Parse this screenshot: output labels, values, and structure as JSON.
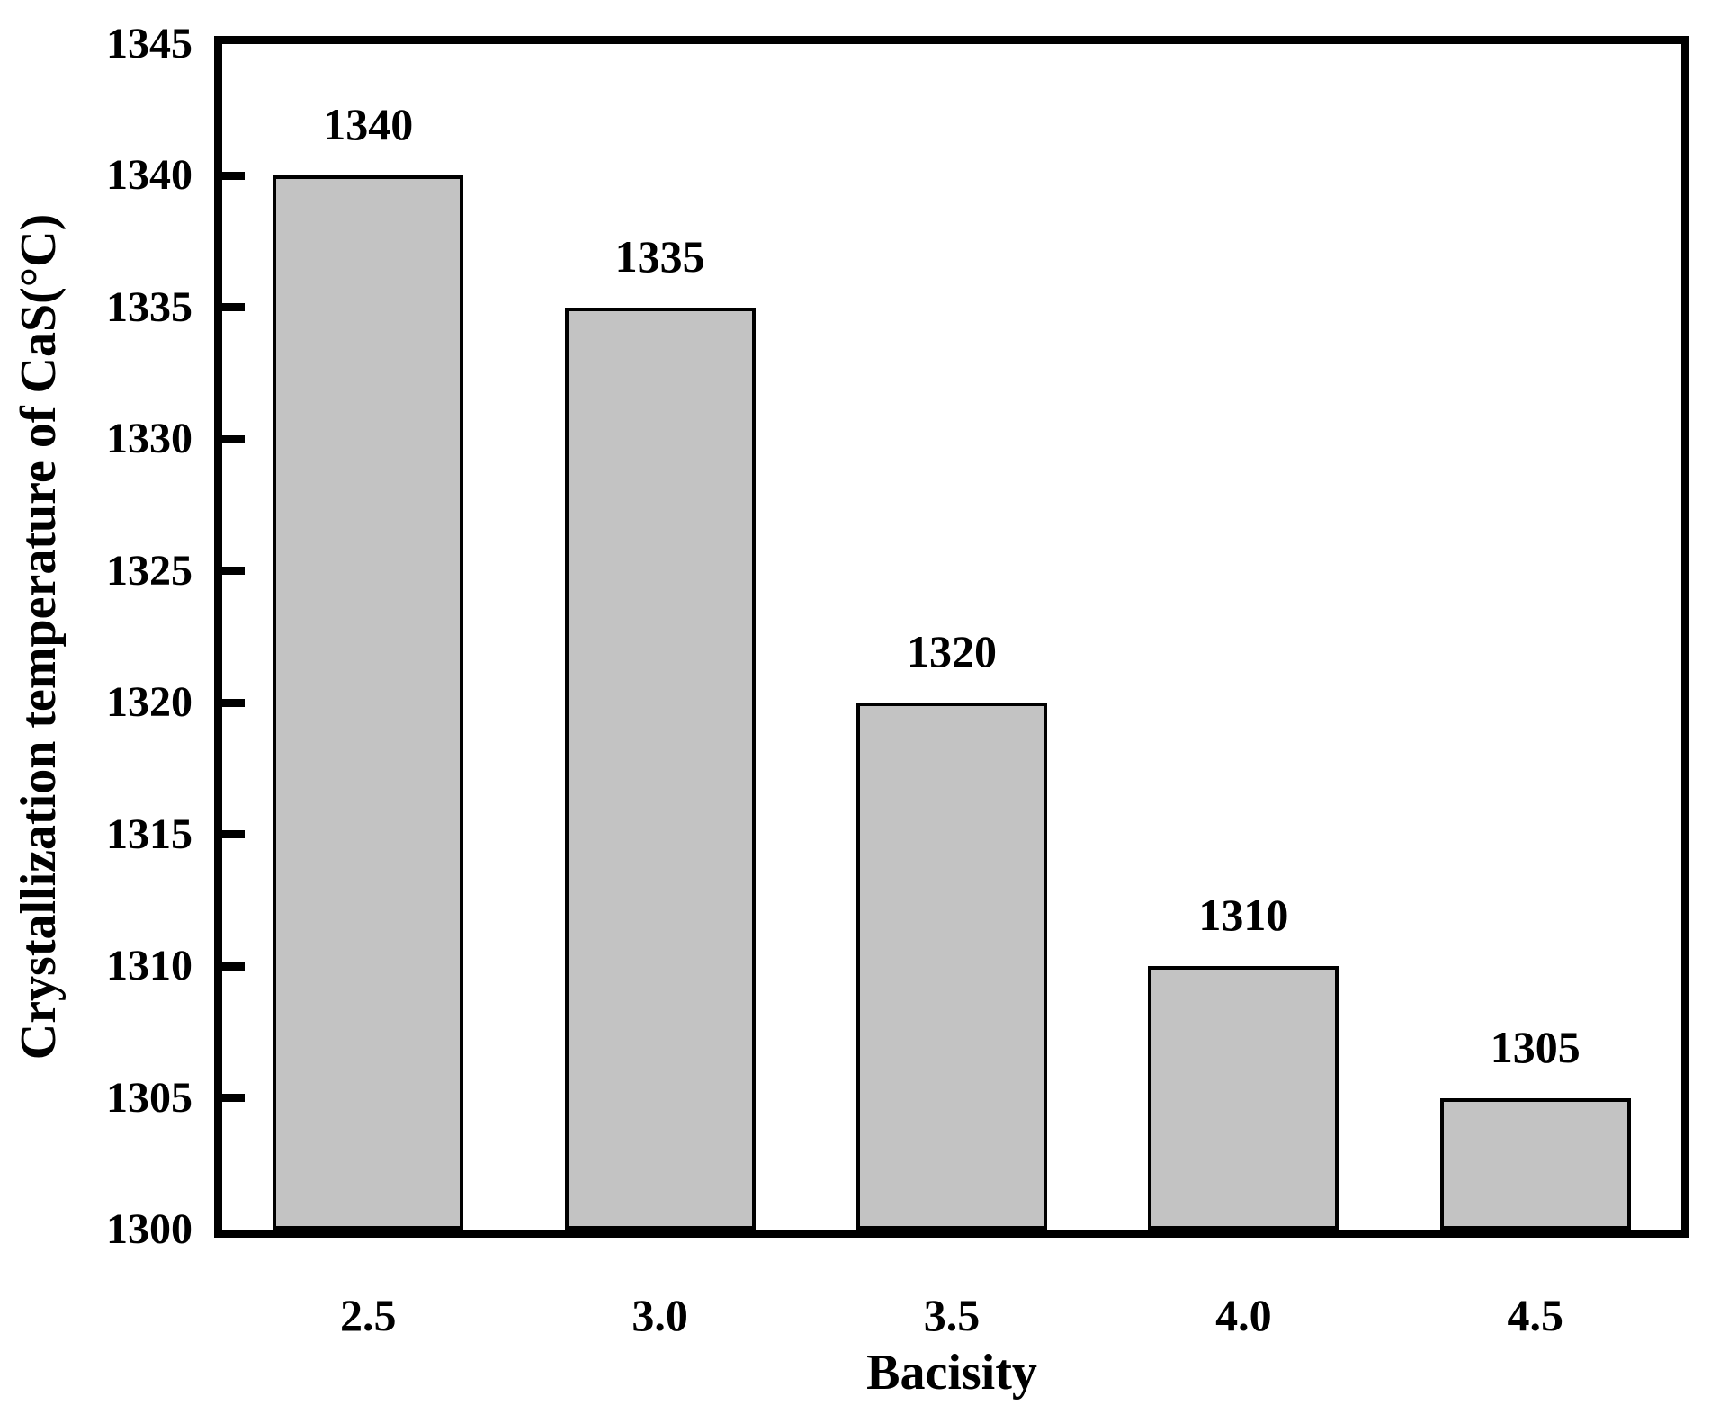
{
  "chart_data": {
    "type": "bar",
    "title": "",
    "xlabel": "Bacisity",
    "ylabel": "Crystallization temperature of CaS(°C)",
    "categories": [
      "2.5",
      "3.0",
      "3.5",
      "4.0",
      "4.5"
    ],
    "values": [
      1340,
      1335,
      1320,
      1310,
      1305
    ],
    "bar_value_labels": [
      "1340",
      "1335",
      "1320",
      "1310",
      "1305"
    ],
    "ylim": [
      1300,
      1345
    ],
    "yticks": [
      1300,
      1305,
      1310,
      1315,
      1320,
      1325,
      1330,
      1335,
      1340,
      1345
    ],
    "ytick_step": 5,
    "grid": false,
    "legend": "none",
    "tick_direction": "in",
    "colors": {
      "bar_fill": "#c3c3c3",
      "bar_border": "#000000",
      "axis": "#000000",
      "text": "#000000",
      "background": "#ffffff"
    }
  }
}
